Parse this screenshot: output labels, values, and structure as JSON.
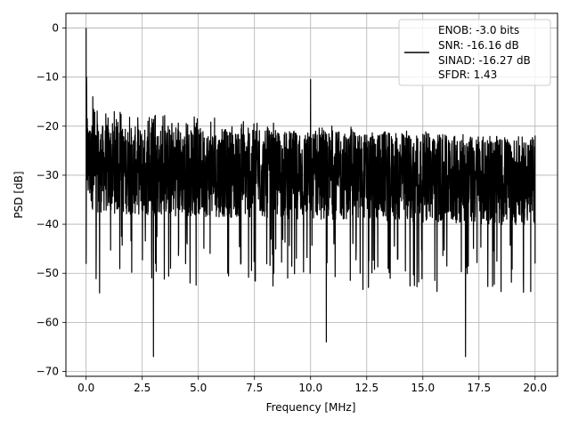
{
  "chart_data": {
    "type": "line",
    "title": "",
    "xlabel": "Frequency [MHz]",
    "ylabel": "PSD [dB]",
    "xlim": [
      -0.9,
      21.0
    ],
    "ylim": [
      -71,
      3
    ],
    "x_ticks": [
      0.0,
      2.5,
      5.0,
      7.5,
      10.0,
      12.5,
      15.0,
      17.5,
      20.0
    ],
    "x_tick_labels": [
      "0.0",
      "2.5",
      "5.0",
      "7.5",
      "10.0",
      "12.5",
      "15.0",
      "17.5",
      "20.0"
    ],
    "y_ticks": [
      0,
      -10,
      -20,
      -30,
      -40,
      -50,
      -60,
      -70
    ],
    "y_tick_labels": [
      "0",
      "−10",
      "−20",
      "−30",
      "−40",
      "−50",
      "−60",
      "−70"
    ],
    "grid": true,
    "legend_position": "top-right",
    "line_color": "#000000",
    "series": [
      {
        "name": "ENOB: -3.0 bits\nSNR: -16.16 dB\nSINAD: -16.27 dB\nSFDR: 1.43",
        "x_range": [
          0,
          20
        ],
        "approx_points": [
          {
            "x": 0.0,
            "y": 0
          },
          {
            "x": 0.0,
            "y": -48
          },
          {
            "x": 0.05,
            "y": -10
          },
          {
            "x": 0.3,
            "y": -14
          },
          {
            "x": 0.6,
            "y": -54
          },
          {
            "x": 3.0,
            "y": -67
          },
          {
            "x": 10.0,
            "y": -10.5
          },
          {
            "x": 10.7,
            "y": -64
          },
          {
            "x": 16.9,
            "y": -67
          },
          {
            "x": 20.0,
            "y": -22
          },
          {
            "x": 20.0,
            "y": -48
          }
        ],
        "upper_envelope": {
          "x": [
            0.05,
            0.5,
            2.5,
            5,
            7.5,
            10,
            12.5,
            15,
            17.5,
            20
          ],
          "y": [
            -13,
            -16,
            -17.5,
            -18,
            -19,
            -19.5,
            -20,
            -21,
            -22,
            -22.5
          ]
        },
        "lower_envelope": {
          "x": [
            0.05,
            0.5,
            2.5,
            5,
            7.5,
            10,
            12.5,
            15,
            17.5,
            20
          ],
          "y": [
            -40,
            -42,
            -42,
            -43,
            -43,
            -43,
            -44,
            -44,
            -44,
            -44
          ]
        },
        "dense_band": [
          -38,
          -20
        ]
      }
    ],
    "legend_lines": [
      "ENOB: -3.0 bits",
      "SNR: -16.16 dB",
      "SINAD: -16.27 dB",
      "SFDR: 1.43"
    ]
  }
}
